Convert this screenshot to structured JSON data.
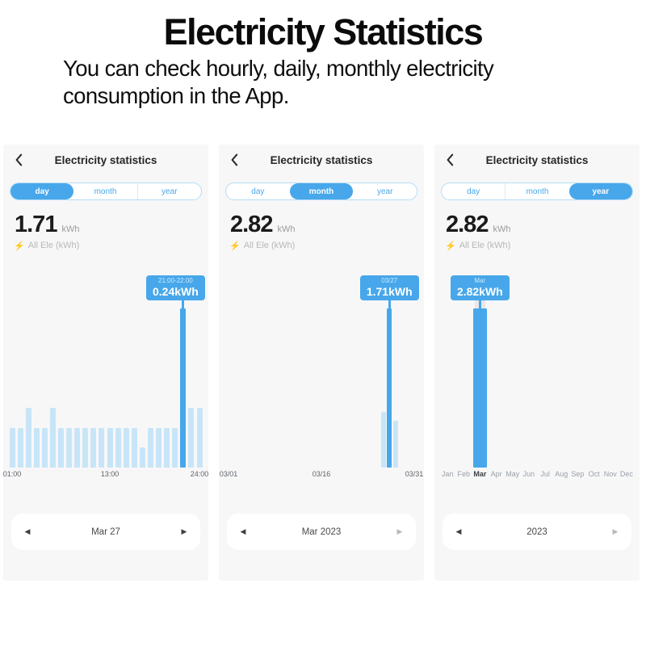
{
  "page": {
    "title": "Electricity Statistics",
    "subtitle": "You can check hourly, daily, monthly electricity consumption in the App."
  },
  "icons": {
    "lightning": "⚡",
    "prev": "◀",
    "next": "▶",
    "back": "chevron-left"
  },
  "colors": {
    "accent_blue": "#47a7ea",
    "bar_light": "#c8e5f8",
    "lightning_orange": "#f6a623",
    "panel_background": "#f7f7f8",
    "tooltip_secondary_text": "#cfe9fb"
  },
  "panels": [
    {
      "header": {
        "title": "Electricity statistics"
      },
      "tabs": [
        {
          "label": "day",
          "active": true
        },
        {
          "label": "month",
          "active": false
        },
        {
          "label": "year",
          "active": false
        }
      ],
      "value": "1.71",
      "unit": "kWh",
      "legend": "All Ele (kWh)",
      "tooltip": {
        "line1": "21:00-22:00",
        "line2": "0.24kWh"
      },
      "chart_data": {
        "type": "bar",
        "xlabel": "hour of day",
        "ylabel": "kWh",
        "ylim": [
          0,
          0.25
        ],
        "values": [
          0.06,
          0.06,
          0.09,
          0.06,
          0.06,
          0.09,
          0.06,
          0.06,
          0.06,
          0.06,
          0.06,
          0.06,
          0.06,
          0.06,
          0.06,
          0.06,
          0.03,
          0.06,
          0.06,
          0.06,
          0.06,
          0.24,
          0.09,
          0.09
        ],
        "selected_index": 21,
        "selected_label": "21:00-22:00",
        "selected_value": 0.24,
        "ticks": [
          {
            "label": "01:00",
            "slot": 0
          },
          {
            "label": "13:00",
            "slot": 12
          },
          {
            "label": "24:00",
            "slot": 23
          }
        ]
      },
      "nav": {
        "label": "Mar 27",
        "prev_color": "#3f3f3f",
        "next_color": "#3f3f3f"
      }
    },
    {
      "header": {
        "title": "Electricity statistics"
      },
      "tabs": [
        {
          "label": "day",
          "active": false
        },
        {
          "label": "month",
          "active": true
        },
        {
          "label": "year",
          "active": false
        }
      ],
      "value": "2.82",
      "unit": "kWh",
      "legend": "All Ele (kWh)",
      "tooltip": {
        "line1": "03/27",
        "line2": "1.71kWh"
      },
      "chart_data": {
        "type": "bar",
        "xlabel": "day of March 2023",
        "ylabel": "kWh",
        "ylim": [
          0,
          1.8
        ],
        "values": [
          0,
          0,
          0,
          0,
          0,
          0,
          0,
          0,
          0,
          0,
          0,
          0,
          0,
          0,
          0,
          0,
          0,
          0,
          0,
          0,
          0,
          0,
          0,
          0,
          0,
          0.6,
          1.71,
          0.5,
          0,
          0,
          0
        ],
        "selected_index": 26,
        "selected_label": "03/27",
        "selected_value": 1.71,
        "ticks": [
          {
            "label": "03/01",
            "slot": 0
          },
          {
            "label": "03/16",
            "slot": 15
          },
          {
            "label": "03/31",
            "slot": 30
          }
        ]
      },
      "nav": {
        "label": "Mar 2023",
        "prev_color": "#3f3f3f",
        "next_color": "#b9b9b9"
      }
    },
    {
      "header": {
        "title": "Electricity statistics"
      },
      "tabs": [
        {
          "label": "day",
          "active": false
        },
        {
          "label": "month",
          "active": false
        },
        {
          "label": "year",
          "active": true
        }
      ],
      "value": "2.82",
      "unit": "kWh",
      "legend": "All Ele (kWh)",
      "tooltip": {
        "line1": "Mar",
        "line2": "2.82kWh"
      },
      "chart_data": {
        "type": "bar",
        "xlabel": "month of 2023",
        "ylabel": "kWh",
        "ylim": [
          0,
          3
        ],
        "values": [
          0,
          0,
          2.82,
          0,
          0,
          0,
          0,
          0,
          0,
          0,
          0,
          0
        ],
        "selected_index": 2,
        "selected_label": "Mar",
        "selected_value": 2.82,
        "ticks": [
          {
            "label": "Jan",
            "slot": 0
          },
          {
            "label": "Feb",
            "slot": 1
          },
          {
            "label": "Mar",
            "slot": 2,
            "em": true
          },
          {
            "label": "Apr",
            "slot": 3
          },
          {
            "label": "May",
            "slot": 4
          },
          {
            "label": "Jun",
            "slot": 5
          },
          {
            "label": "Jul",
            "slot": 6
          },
          {
            "label": "Aug",
            "slot": 7
          },
          {
            "label": "Sep",
            "slot": 8
          },
          {
            "label": "Oct",
            "slot": 9
          },
          {
            "label": "Nov",
            "slot": 10
          },
          {
            "label": "Dec",
            "slot": 11
          }
        ]
      },
      "nav": {
        "label": "2023",
        "prev_color": "#3f3f3f",
        "next_color": "#b9b9b9"
      }
    }
  ]
}
